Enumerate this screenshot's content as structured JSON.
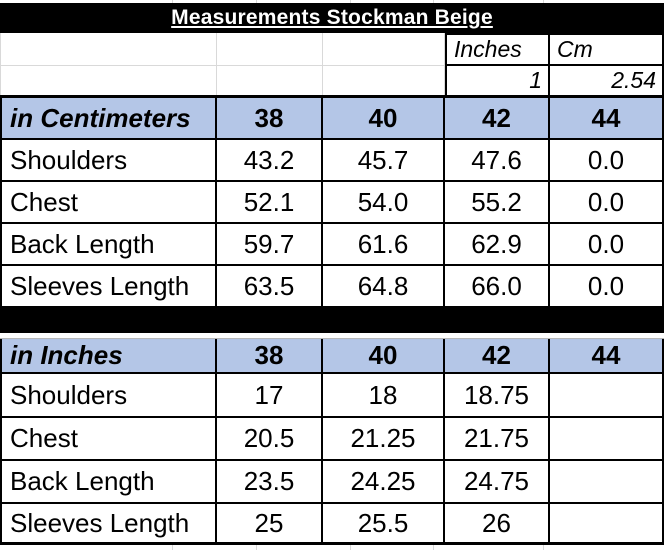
{
  "title": "Measurements Stockman Beige",
  "conversion": {
    "inches_label": "Inches",
    "cm_label": "Cm",
    "inches_value": "1",
    "cm_value": "2.54"
  },
  "colors": {
    "header_fill": "#000000",
    "header_text": "#ffffff",
    "accent_blue": "#b4c6e7",
    "gridline_gray": "#d9d9d9"
  },
  "cm_table": {
    "header_label": "in Centimeters",
    "sizes": [
      "38",
      "40",
      "42",
      "44"
    ],
    "rows": [
      {
        "label": "Shoulders",
        "values": [
          "43.2",
          "45.7",
          "47.6",
          "0.0"
        ]
      },
      {
        "label": "Chest",
        "values": [
          "52.1",
          "54.0",
          "55.2",
          "0.0"
        ]
      },
      {
        "label": "Back Length",
        "values": [
          "59.7",
          "61.6",
          "62.9",
          "0.0"
        ]
      },
      {
        "label": "Sleeves Length",
        "values": [
          "63.5",
          "64.8",
          "66.0",
          "0.0"
        ]
      }
    ]
  },
  "inch_table": {
    "header_label": "in Inches",
    "sizes": [
      "38",
      "40",
      "42",
      "44"
    ],
    "rows": [
      {
        "label": "Shoulders",
        "values": [
          "17",
          "18",
          "18.75",
          ""
        ]
      },
      {
        "label": "Chest",
        "values": [
          "20.5",
          "21.25",
          "21.75",
          ""
        ]
      },
      {
        "label": "Back Length",
        "values": [
          "23.5",
          "24.25",
          "24.75",
          ""
        ]
      },
      {
        "label": "Sleeves Length",
        "values": [
          "25",
          "25.5",
          "26",
          ""
        ]
      }
    ]
  }
}
